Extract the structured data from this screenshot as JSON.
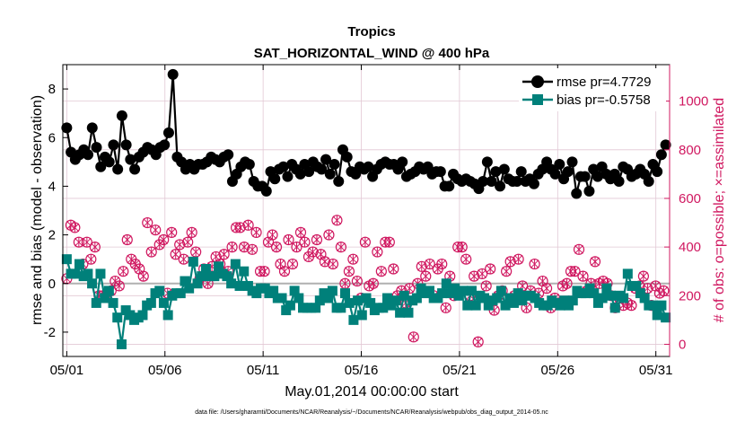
{
  "chart_data": {
    "type": "line",
    "title": "Tropics",
    "subtitle": "SAT_HORIZONTAL_WIND @ 400 hPa",
    "xlabel": "May.01,2014 00:00:00 start",
    "ylabel_left": "rmse and bias (model - observation)",
    "ylabel_right": "# of obs: o=possible; ×=assimilated",
    "x_tick_labels": [
      "05/01",
      "05/06",
      "05/11",
      "05/16",
      "05/21",
      "05/26",
      "05/31"
    ],
    "x_tick_days": [
      0,
      5,
      10,
      15,
      20,
      25,
      30
    ],
    "xlim_days": [
      -0.2,
      30.7
    ],
    "ylim_left": [
      -3,
      9
    ],
    "y_ticks_left": [
      -2,
      0,
      2,
      4,
      6,
      8
    ],
    "ylim_right": [
      -50,
      1150
    ],
    "y_ticks_right": [
      0,
      200,
      400,
      600,
      800,
      1000
    ],
    "grid": true,
    "legend_position": "top-right",
    "footnote": "data file: /Users/gharamti/Documents/NCAR/Reanalysis/~/Documents/NCAR/Reanalysis/webpub/obs_diag_output_2014-05.nc",
    "colors": {
      "rmse": "#000000",
      "bias": "#00807a",
      "obs": "#d01860",
      "zero_line": "#b0b0b0",
      "grid": "#e2c8d4"
    },
    "series": [
      {
        "name": "rmse pr=4.7729",
        "values": [
          6.4,
          5.4,
          5.1,
          5.3,
          5.5,
          5.3,
          6.4,
          5.6,
          4.8,
          5.2,
          5.0,
          5.7,
          4.7,
          6.9,
          5.7,
          5.1,
          4.7,
          5.2,
          5.4,
          5.6,
          5.5,
          5.3,
          5.6,
          5.7,
          6.2,
          8.6,
          5.2,
          5.0,
          4.7,
          4.9,
          4.7,
          4.9,
          4.9,
          5.0,
          5.2,
          5.1,
          5.0,
          5.2,
          5.3,
          4.2,
          4.5,
          4.8,
          5.0,
          4.9,
          4.2,
          4.0,
          4.0,
          3.8,
          4.6,
          4.3,
          4.7,
          4.8,
          4.4,
          4.9,
          4.7,
          4.5,
          4.9,
          4.6,
          5.0,
          4.8,
          4.7,
          5.1,
          4.5,
          4.9,
          4.2,
          5.5,
          5.2,
          4.6,
          4.5,
          4.8,
          4.7,
          4.8,
          4.4,
          4.7,
          4.9,
          5.0,
          4.9,
          4.9,
          4.7,
          5.0,
          4.4,
          4.5,
          4.6,
          4.8,
          4.7,
          4.8,
          4.5,
          4.6,
          4.6,
          4.0,
          4.0,
          4.5,
          4.3,
          4.2,
          4.3,
          4.2,
          4.1,
          3.9,
          4.2,
          5.0,
          4.2,
          4.6,
          4.0,
          4.7,
          4.3,
          4.2,
          4.2,
          4.6,
          4.2,
          4.3,
          4.1,
          4.5,
          4.7,
          5.0,
          4.7,
          4.5,
          4.9,
          4.3,
          4.6,
          5.0,
          3.7,
          4.4,
          4.4,
          3.8,
          4.7,
          4.4,
          4.8,
          4.5,
          4.3,
          4.5,
          4.2,
          4.8,
          4.7,
          4.4,
          4.5,
          4.7,
          4.5,
          4.2,
          4.9,
          4.6,
          5.3,
          5.7
        ]
      },
      {
        "name": "bias pr=-0.5758",
        "values": [
          1.0,
          0.4,
          0.4,
          0.8,
          0.3,
          0.4,
          0.0,
          -0.8,
          0.4,
          -0.6,
          -0.3,
          -0.8,
          -1.4,
          -2.5,
          -1.1,
          -1.3,
          -1.5,
          -1.4,
          -1.3,
          -0.9,
          -0.8,
          -0.4,
          -0.3,
          -0.8,
          -1.3,
          -0.5,
          -0.4,
          -0.4,
          0.1,
          -0.2,
          0.9,
          0.0,
          0.3,
          0.6,
          0.3,
          0.3,
          0.7,
          0.4,
          0.3,
          0.0,
          0.8,
          -0.1,
          0.5,
          -0.1,
          -0.3,
          -0.4,
          -0.2,
          -0.2,
          -0.4,
          -0.3,
          -0.6,
          -0.6,
          -1.1,
          -0.9,
          -0.3,
          -0.6,
          -1.0,
          -1.0,
          -1.0,
          -1.0,
          -0.7,
          -0.4,
          -0.6,
          -0.3,
          -1.0,
          -1.0,
          -0.4,
          -0.8,
          -1.5,
          -0.7,
          -1.3,
          -0.6,
          -0.8,
          -1.1,
          -1.0,
          -1.0,
          -0.6,
          -0.9,
          -0.7,
          -1.2,
          -0.5,
          -1.2,
          -0.7,
          -0.6,
          -0.2,
          -0.4,
          -0.3,
          -0.6,
          -0.6,
          -0.4,
          0.0,
          -0.4,
          -0.2,
          -0.5,
          -0.3,
          -0.9,
          -0.3,
          -0.9,
          -0.5,
          -0.6,
          -0.9,
          -0.7,
          -0.6,
          -0.3,
          -0.9,
          -0.6,
          -0.8,
          -0.4,
          -0.7,
          -0.5,
          -0.5,
          -0.6,
          -0.8,
          -0.9,
          -0.9,
          -0.7,
          -0.8,
          -0.9,
          -0.7,
          -0.9,
          -0.7,
          -0.3,
          -0.4,
          -0.4,
          -0.2,
          -0.4,
          -0.8,
          -0.6,
          -0.2,
          -0.5,
          -1.0,
          -0.5,
          -0.6,
          0.4,
          -0.1,
          -0.1,
          -0.4,
          -0.6,
          -0.9,
          -0.9,
          -1.3,
          -0.9,
          -1.4
        ]
      }
    ],
    "obs_possible": [
      270,
      420,
      490,
      530,
      480,
      390,
      420,
      440,
      330,
      450,
      420,
      300,
      350,
      320,
      400,
      220,
      200,
      230,
      200,
      180,
      210,
      210,
      220,
      200,
      260,
      230,
      240,
      200,
      300,
      380,
      430,
      370,
      350,
      360,
      330,
      300,
      310,
      250,
      280,
      230,
      500,
      400,
      380,
      300,
      470,
      440,
      410,
      380,
      430,
      280,
      210,
      260,
      460,
      300,
      370,
      440,
      410,
      380,
      350,
      300,
      420,
      340,
      460,
      470,
      380,
      450,
      270,
      380,
      310,
      460,
      250,
      280,
      320,
      310,
      360,
      320,
      330,
      270,
      370,
      410,
      300,
      330,
      400,
      460,
      480,
      440,
      480,
      360,
      400,
      450,
      490,
      380,
      390,
      280,
      460,
      420,
      300,
      350,
      300,
      460,
      420,
      390,
      450,
      350,
      400,
      330,
      330,
      460,
      300,
      380,
      430,
      340,
      330,
      440,
      400,
      380,
      460,
      500,
      420,
      450,
      360,
      420,
      380,
      400,
      430,
      460,
      370,
      330,
      340,
      320,
      450,
      300,
      330,
      450,
      510,
      470,
      400,
      310,
      250,
      380,
      300,
      440,
      350,
      230,
      260,
      380,
      190,
      320,
      420,
      300,
      240,
      280,
      250,
      310,
      380,
      350,
      300,
      400,
      420,
      300,
      420,
      380,
      310,
      380,
      200,
      260,
      220,
      230,
      170,
      280,
      230,
      130,
      30,
      10,
      250,
      150,
      320,
      350,
      280,
      210,
      330,
      210,
      200,
      250,
      310,
      400,
      330,
      180,
      150,
      270,
      280,
      350,
      200,
      330,
      400,
      250,
      400,
      180,
      350,
      90,
      200,
      130,
      280,
      80,
      10,
      130,
      290,
      300,
      240,
      320,
      310,
      230,
      140,
      120,
      200,
      250,
      220,
      350,
      300,
      280,
      340,
      260,
      200,
      260,
      350,
      350,
      240,
      200,
      150,
      140,
      220,
      270,
      330,
      260,
      210,
      210,
      260,
      290,
      230,
      230,
      150,
      150,
      190,
      260,
      170,
      270,
      240,
      350,
      250,
      330,
      300,
      350,
      300,
      320,
      390,
      300,
      280,
      350,
      220,
      340,
      250,
      210,
      340,
      200,
      250,
      220,
      260,
      300,
      250,
      230,
      200,
      120,
      150,
      250,
      190,
      270,
      160,
      300,
      170,
      230,
      160,
      270,
      230,
      310,
      240,
      190,
      280,
      300,
      230,
      280,
      160,
      210,
      240,
      230,
      210,
      300,
      220,
      320
    ],
    "obs_assimilated": [
      270,
      420,
      490,
      530,
      480,
      390,
      420,
      440,
      330,
      450,
      420,
      300,
      350,
      320,
      400,
      220,
      200,
      230,
      200,
      180,
      210,
      210,
      220,
      200,
      260,
      230,
      240,
      200,
      300,
      380,
      430,
      370,
      350,
      360,
      330,
      300,
      310,
      250,
      280,
      230,
      500,
      400,
      380,
      300,
      470,
      440,
      410,
      380,
      430,
      280,
      210,
      260,
      460,
      300,
      370,
      440,
      410,
      380,
      350,
      300,
      420,
      340,
      460,
      470,
      380,
      450,
      270,
      380,
      310,
      460,
      250,
      280,
      320,
      310,
      360,
      320,
      330,
      270,
      370,
      410,
      300,
      330,
      400,
      460,
      480,
      440,
      480,
      360,
      400,
      450,
      490,
      380,
      390,
      280,
      460,
      420,
      300,
      350,
      300,
      460,
      420,
      390,
      450,
      350,
      400,
      330,
      330,
      460,
      300,
      380,
      430,
      340,
      330,
      440,
      400,
      380,
      460,
      500,
      420,
      450,
      360,
      420,
      380,
      400,
      430,
      460,
      370,
      330,
      340,
      320,
      450,
      300,
      330,
      450,
      510,
      470,
      400,
      310,
      250,
      380,
      300,
      440,
      350,
      230,
      260,
      380,
      190,
      320,
      420,
      300,
      240,
      280,
      250,
      310,
      380,
      350,
      300,
      400,
      420,
      300,
      420,
      380,
      310,
      380,
      200,
      260,
      220,
      230,
      170,
      280,
      230,
      130,
      30,
      10,
      250,
      150,
      320,
      350,
      280,
      210,
      330,
      210,
      200,
      250,
      310,
      400,
      330,
      180,
      150,
      270,
      280,
      350,
      200,
      330,
      400,
      250,
      400,
      180,
      350,
      90,
      200,
      130,
      280,
      80,
      10,
      130,
      290,
      300,
      240,
      320,
      310,
      230,
      140,
      120,
      200,
      250,
      220,
      350,
      300,
      280,
      340,
      260,
      200,
      260,
      350,
      350,
      240,
      200,
      150,
      140,
      220,
      270,
      330,
      260,
      210,
      210,
      260,
      290,
      230,
      230,
      150,
      150,
      190,
      260,
      170,
      270,
      240,
      350,
      250,
      330,
      300,
      350,
      300,
      320,
      390,
      300,
      280,
      350,
      220,
      340,
      250,
      210,
      340,
      200,
      250,
      220,
      260,
      300,
      250,
      230,
      200,
      120,
      150,
      250,
      190,
      270,
      160,
      300,
      170,
      230,
      160,
      270,
      230,
      310,
      240,
      190,
      280,
      300,
      230,
      280,
      160,
      210,
      240,
      230,
      210,
      300,
      220,
      320
    ]
  }
}
